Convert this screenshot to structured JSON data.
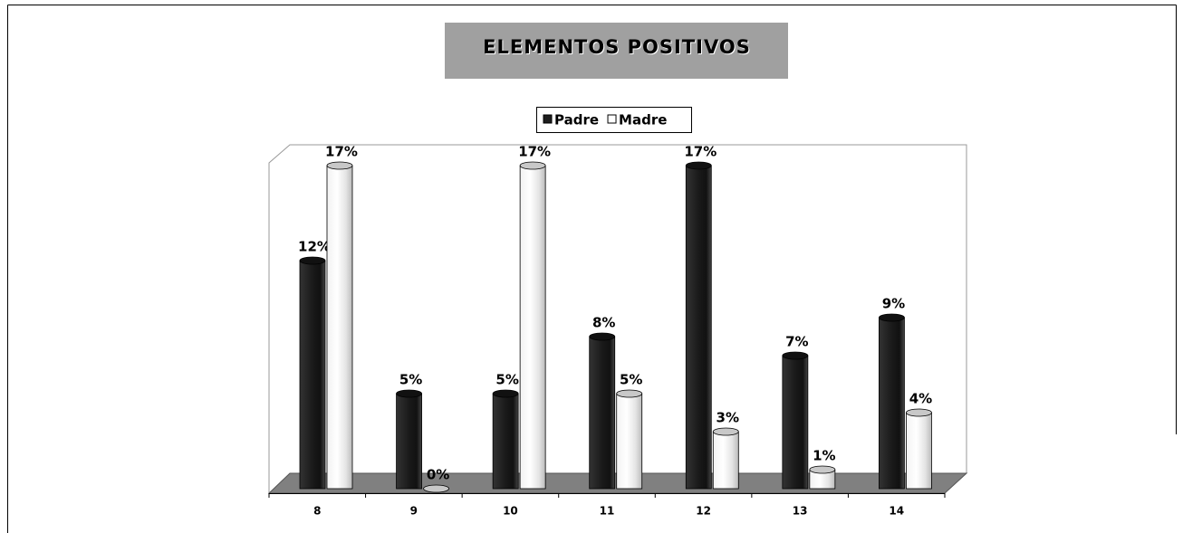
{
  "chart_data": {
    "type": "bar3d",
    "title": "ELEMENTOS  POSITIVOS",
    "categories": [
      "8",
      "9",
      "10",
      "11",
      "12",
      "13",
      "14"
    ],
    "series": [
      {
        "name": "Padre",
        "color": "#1e1e1e",
        "values": [
          12,
          5,
          5,
          8,
          17,
          7,
          9
        ],
        "value_labels": [
          "12%",
          "5%",
          "5%",
          "8%",
          "17%",
          "7%",
          "9%"
        ]
      },
      {
        "name": "Madre",
        "color": "#ffffff",
        "values": [
          17,
          0,
          17,
          5,
          3,
          1,
          4
        ],
        "value_labels": [
          "17%",
          "0%",
          "17%",
          "5%",
          "3%",
          "1%",
          "4%"
        ]
      }
    ],
    "legend": "top"
  }
}
